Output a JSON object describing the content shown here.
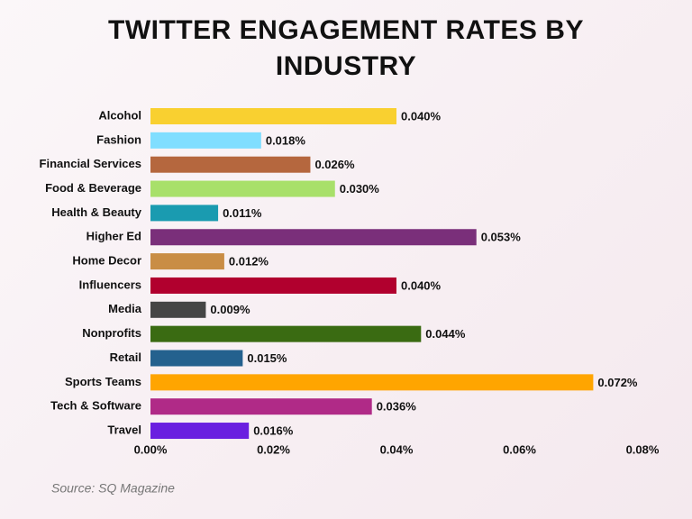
{
  "chart_data": {
    "type": "hbar",
    "title": "TWITTER ENGAGEMENT RATES BY INDUSTRY",
    "categories": [
      "Alcohol",
      "Fashion",
      "Financial Services",
      "Food & Beverage",
      "Health & Beauty",
      "Higher Ed",
      "Home Decor",
      "Influencers",
      "Media",
      "Nonprofits",
      "Retail",
      "Sports Teams",
      "Tech & Software",
      "Travel"
    ],
    "values": [
      0.04,
      0.018,
      0.026,
      0.03,
      0.011,
      0.053,
      0.012,
      0.04,
      0.009,
      0.044,
      0.015,
      0.072,
      0.036,
      0.016
    ],
    "value_labels": [
      "0.040%",
      "0.018%",
      "0.026%",
      "0.030%",
      "0.011%",
      "0.053%",
      "0.012%",
      "0.040%",
      "0.009%",
      "0.044%",
      "0.015%",
      "0.072%",
      "0.036%",
      "0.016%"
    ],
    "colors": [
      "#f9d030",
      "#80deff",
      "#b5673e",
      "#a8e06a",
      "#1a9bb0",
      "#7a2f7a",
      "#c98d45",
      "#b1002e",
      "#454545",
      "#3a6b12",
      "#24618e",
      "#ffa500",
      "#b02a87",
      "#6a1fe0"
    ],
    "xlim": [
      0,
      0.08
    ],
    "xticks": [
      {
        "value": 0,
        "label": "0.00%"
      },
      {
        "value": 0.02,
        "label": "0.02%"
      },
      {
        "value": 0.04,
        "label": "0.04%"
      },
      {
        "value": 0.06,
        "label": "0.06%"
      },
      {
        "value": 0.08,
        "label": "0.08%"
      }
    ],
    "source": "Source: SQ Magazine"
  }
}
